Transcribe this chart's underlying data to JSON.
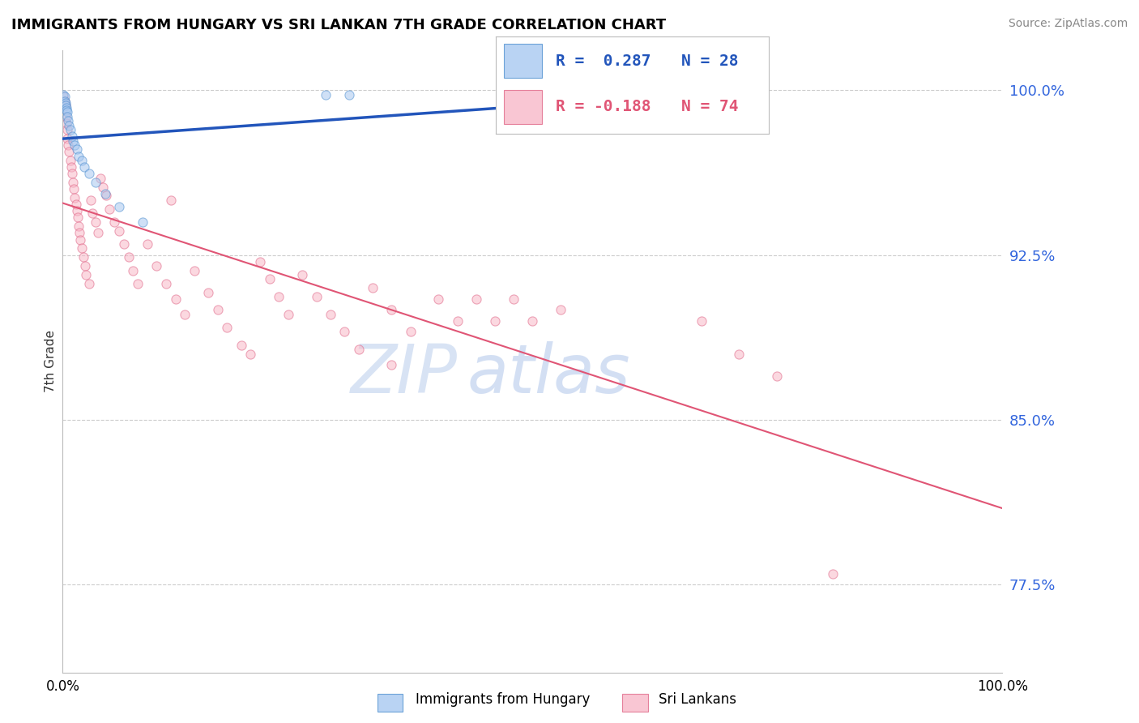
{
  "title": "IMMIGRANTS FROM HUNGARY VS SRI LANKAN 7TH GRADE CORRELATION CHART",
  "source": "Source: ZipAtlas.com",
  "ylabel": "7th Grade",
  "ytick_values": [
    0.775,
    0.85,
    0.925,
    1.0
  ],
  "ytick_labels": [
    "77.5%",
    "85.0%",
    "92.5%",
    "100.0%"
  ],
  "xmin": 0.0,
  "xmax": 1.0,
  "ymin": 0.735,
  "ymax": 1.018,
  "blue_fill": "#A8C8F0",
  "blue_edge": "#5090D0",
  "pink_fill": "#F8B8C8",
  "pink_edge": "#E06888",
  "blue_line_color": "#2255BB",
  "pink_line_color": "#E05575",
  "legend_R_blue": "R =  0.287",
  "legend_N_blue": "N = 28",
  "legend_R_pink": "R = -0.188",
  "legend_N_pink": "N = 74",
  "grid_color": "#CCCCCC",
  "watermark_zip": "ZIP",
  "watermark_atlas": "atlas",
  "background_color": "#FFFFFF",
  "marker_size": 65,
  "marker_alpha": 0.55
}
